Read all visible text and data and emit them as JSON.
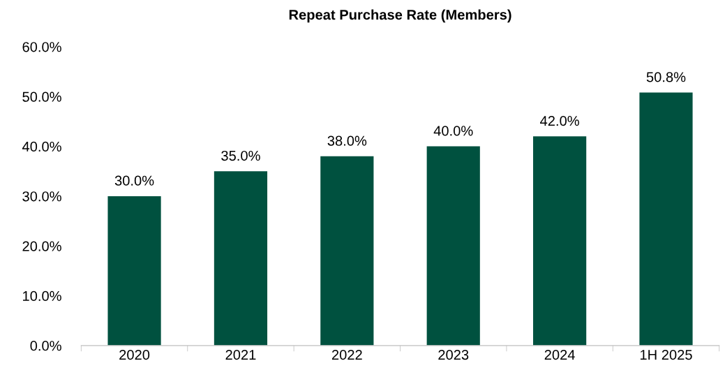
{
  "chart_data": {
    "type": "bar",
    "title": "Repeat Purchase Rate (Members)",
    "categories": [
      "2020",
      "2021",
      "2022",
      "2023",
      "2024",
      "1H 2025"
    ],
    "values": [
      30.0,
      35.0,
      38.0,
      40.0,
      42.0,
      50.8
    ],
    "color": "#00513f",
    "value_labels": [
      "30.0%",
      "35.0%",
      "38.0%",
      "40.0%",
      "42.0%",
      "50.8%"
    ],
    "ylim": [
      0,
      60
    ],
    "yticks": [
      {
        "value": 0,
        "label": "0.0%"
      },
      {
        "value": 10,
        "label": "10.0%"
      },
      {
        "value": 20,
        "label": "20.0%"
      },
      {
        "value": 30,
        "label": "30.0%"
      },
      {
        "value": 40,
        "label": "40.0%"
      },
      {
        "value": 50,
        "label": "50.0%"
      },
      {
        "value": 60,
        "label": "60.0%"
      }
    ],
    "grid": false,
    "legend": false
  }
}
